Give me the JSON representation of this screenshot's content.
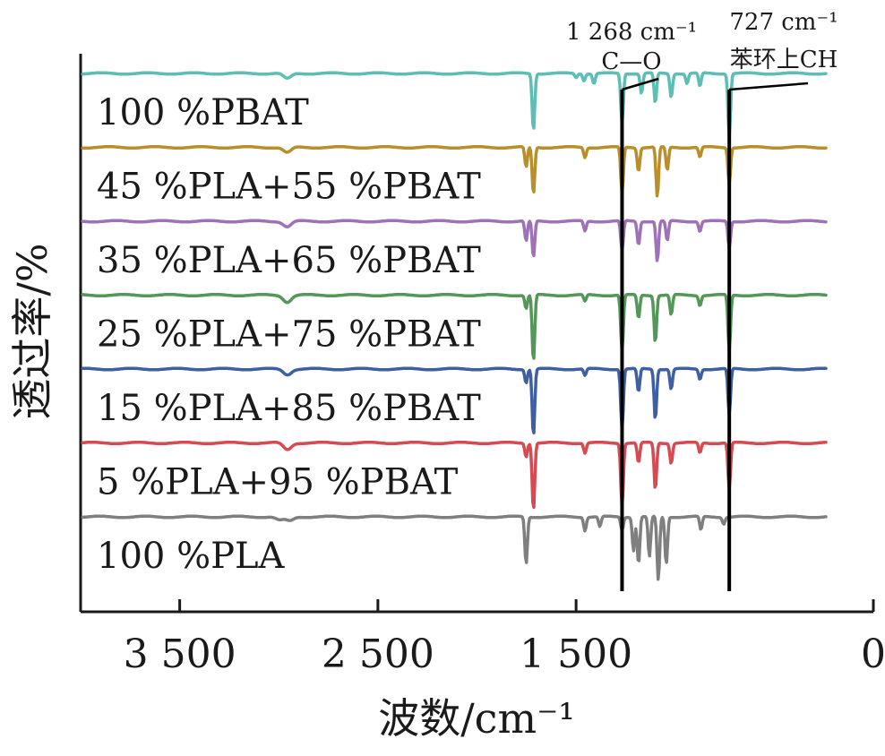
{
  "chart_data": {
    "type": "line",
    "title": "",
    "xlabel": "波数/cm⁻¹",
    "ylabel": "透过率/%",
    "xlim": [
      4000,
      0
    ],
    "x_reversed": true,
    "x_ticks": [
      {
        "value": 3500,
        "label": "3 500"
      },
      {
        "value": 2500,
        "label": "2 500"
      },
      {
        "value": 1500,
        "label": "1 500"
      },
      {
        "value": 0,
        "label": "0"
      }
    ],
    "y_ticks_shown": false,
    "stacked_offsets": true,
    "series": [
      {
        "name": "100 %PBAT",
        "color": "#5dbfb3",
        "baseline_rank": 6,
        "peaks": [
          [
            2957,
            0.08
          ],
          [
            1715,
            0.85
          ],
          [
            1500,
            0.06
          ],
          [
            1460,
            0.1
          ],
          [
            1410,
            0.15
          ],
          [
            1268,
            0.75
          ],
          [
            1170,
            0.3
          ],
          [
            1100,
            0.45
          ],
          [
            1020,
            0.35
          ],
          [
            940,
            0.15
          ],
          [
            875,
            0.2
          ],
          [
            727,
            0.95
          ]
        ]
      },
      {
        "name": "45 %PLA+55 %PBAT",
        "color": "#b98f2a",
        "baseline_rank": 5,
        "peaks": [
          [
            2957,
            0.08
          ],
          [
            1752,
            0.3
          ],
          [
            1715,
            0.7
          ],
          [
            1455,
            0.15
          ],
          [
            1268,
            0.7
          ],
          [
            1185,
            0.35
          ],
          [
            1090,
            0.75
          ],
          [
            1040,
            0.35
          ],
          [
            875,
            0.15
          ],
          [
            727,
            0.55
          ]
        ]
      },
      {
        "name": "35 %PLA+65 %PBAT",
        "color": "#9f72b8",
        "baseline_rank": 4,
        "peaks": [
          [
            2957,
            0.08
          ],
          [
            1752,
            0.3
          ],
          [
            1715,
            0.55
          ],
          [
            1455,
            0.15
          ],
          [
            1268,
            0.45
          ],
          [
            1185,
            0.35
          ],
          [
            1090,
            0.6
          ],
          [
            1040,
            0.3
          ],
          [
            875,
            0.15
          ],
          [
            727,
            0.4
          ]
        ]
      },
      {
        "name": "25 %PLA+75 %PBAT",
        "color": "#539858",
        "baseline_rank": 3,
        "peaks": [
          [
            2957,
            0.1
          ],
          [
            1752,
            0.2
          ],
          [
            1715,
            1.0
          ],
          [
            1455,
            0.1
          ],
          [
            1268,
            0.85
          ],
          [
            1185,
            0.35
          ],
          [
            1100,
            0.7
          ],
          [
            1020,
            0.3
          ],
          [
            875,
            0.15
          ],
          [
            727,
            0.85
          ]
        ]
      },
      {
        "name": "15 %PLA+85 %PBAT",
        "color": "#3e5fa2",
        "baseline_rank": 2,
        "peaks": [
          [
            2957,
            0.08
          ],
          [
            1752,
            0.2
          ],
          [
            1715,
            1.0
          ],
          [
            1455,
            0.1
          ],
          [
            1268,
            0.9
          ],
          [
            1185,
            0.35
          ],
          [
            1100,
            0.75
          ],
          [
            1020,
            0.3
          ],
          [
            875,
            0.15
          ],
          [
            727,
            0.7
          ]
        ]
      },
      {
        "name": "5 %PLA+95 %PBAT",
        "color": "#d64a52",
        "baseline_rank": 1,
        "peaks": [
          [
            2957,
            0.1
          ],
          [
            1752,
            0.2
          ],
          [
            1715,
            1.0
          ],
          [
            1455,
            0.15
          ],
          [
            1268,
            0.95
          ],
          [
            1185,
            0.3
          ],
          [
            1100,
            0.7
          ],
          [
            1020,
            0.3
          ],
          [
            875,
            0.15
          ],
          [
            727,
            0.7
          ]
        ]
      },
      {
        "name": "100 %PLA",
        "color": "#7f7f7f",
        "baseline_rank": 0,
        "peaks": [
          [
            2995,
            0.05
          ],
          [
            2945,
            0.06
          ],
          [
            1752,
            0.7
          ],
          [
            1455,
            0.2
          ],
          [
            1380,
            0.15
          ],
          [
            1268,
            0.2
          ],
          [
            1210,
            0.5
          ],
          [
            1185,
            0.7
          ],
          [
            1130,
            0.6
          ],
          [
            1085,
            0.95
          ],
          [
            1045,
            0.7
          ],
          [
            870,
            0.2
          ],
          [
            755,
            0.1
          ]
        ]
      }
    ],
    "annotations": [
      {
        "x": 1268,
        "line1": "1 268 cm⁻¹",
        "line2": "C—O"
      },
      {
        "x": 727,
        "line1": "727 cm⁻¹",
        "line2": "苯环上CH"
      }
    ],
    "grid": false,
    "legend": "inline-labels-left"
  }
}
